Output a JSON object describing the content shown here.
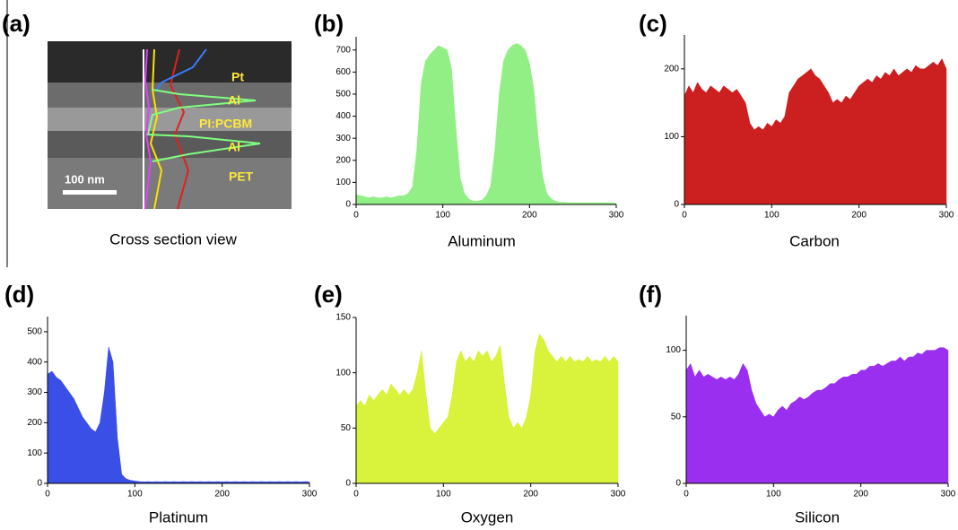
{
  "image_panel": {
    "label": "(a)",
    "caption": "Cross section view",
    "scale_bar": "100 nm",
    "layers": [
      "Pt",
      "Al",
      "PI:PCBM",
      "Al",
      "PET"
    ]
  },
  "chart_data": [
    {
      "type": "area",
      "panel": "(b)",
      "xlabel": "Aluminum",
      "color": "#92ef85",
      "x": [
        0,
        5,
        10,
        15,
        20,
        25,
        30,
        35,
        40,
        45,
        50,
        55,
        60,
        65,
        70,
        75,
        80,
        85,
        90,
        95,
        100,
        105,
        110,
        115,
        120,
        125,
        130,
        135,
        140,
        145,
        150,
        155,
        160,
        165,
        170,
        175,
        180,
        185,
        190,
        195,
        200,
        205,
        210,
        215,
        220,
        225,
        230,
        235,
        240,
        245,
        250,
        255,
        260,
        265,
        270,
        275,
        280,
        285,
        290,
        295,
        300
      ],
      "values": [
        45,
        40,
        35,
        30,
        35,
        30,
        30,
        35,
        30,
        35,
        40,
        40,
        50,
        80,
        250,
        550,
        650,
        680,
        700,
        720,
        710,
        700,
        620,
        350,
        120,
        50,
        25,
        15,
        15,
        20,
        40,
        80,
        250,
        500,
        650,
        700,
        720,
        730,
        720,
        700,
        640,
        520,
        300,
        130,
        50,
        25,
        15,
        10,
        10,
        8,
        8,
        8,
        8,
        8,
        8,
        8,
        8,
        8,
        8,
        8,
        5
      ],
      "xlim": [
        0,
        300
      ],
      "xticks": [
        0,
        100,
        200,
        300
      ],
      "ylim": [
        0,
        760
      ],
      "yticks": [
        0,
        100,
        200,
        300,
        400,
        500,
        600,
        700
      ]
    },
    {
      "type": "area",
      "panel": "(c)",
      "xlabel": "Carbon",
      "color": "#cc1f1f",
      "x": [
        0,
        5,
        10,
        15,
        20,
        25,
        30,
        35,
        40,
        45,
        50,
        55,
        60,
        65,
        70,
        75,
        80,
        85,
        90,
        95,
        100,
        105,
        110,
        115,
        120,
        125,
        130,
        135,
        140,
        145,
        150,
        155,
        160,
        165,
        170,
        175,
        180,
        185,
        190,
        195,
        200,
        205,
        210,
        215,
        220,
        225,
        230,
        235,
        240,
        245,
        250,
        255,
        260,
        265,
        270,
        275,
        280,
        285,
        290,
        295,
        300
      ],
      "values": [
        160,
        175,
        165,
        180,
        170,
        165,
        175,
        170,
        165,
        175,
        170,
        165,
        170,
        160,
        150,
        120,
        110,
        115,
        110,
        120,
        115,
        125,
        120,
        130,
        165,
        175,
        185,
        190,
        195,
        200,
        190,
        185,
        175,
        165,
        150,
        155,
        150,
        160,
        155,
        165,
        175,
        180,
        185,
        180,
        190,
        185,
        195,
        190,
        200,
        190,
        195,
        200,
        195,
        205,
        200,
        200,
        205,
        210,
        205,
        215,
        200
      ],
      "xlim": [
        0,
        300
      ],
      "xticks": [
        0,
        100,
        200,
        300
      ],
      "ylim": [
        0,
        250
      ],
      "yticks": [
        0,
        100,
        200
      ]
    },
    {
      "type": "area",
      "panel": "(d)",
      "xlabel": "Platinum",
      "color": "#3a4fe6",
      "x": [
        0,
        5,
        10,
        15,
        20,
        25,
        30,
        35,
        40,
        45,
        50,
        55,
        60,
        65,
        70,
        75,
        80,
        85,
        90,
        95,
        100,
        105,
        110,
        115,
        120,
        125,
        130,
        135,
        140,
        145,
        150,
        155,
        160,
        165,
        170,
        175,
        180,
        185,
        190,
        195,
        200,
        205,
        210,
        215,
        220,
        225,
        230,
        235,
        240,
        245,
        250,
        255,
        260,
        265,
        270,
        275,
        280,
        285,
        290,
        295,
        300
      ],
      "values": [
        360,
        370,
        350,
        340,
        320,
        300,
        280,
        250,
        220,
        200,
        180,
        170,
        200,
        300,
        450,
        400,
        150,
        30,
        15,
        10,
        8,
        6,
        5,
        6,
        5,
        6,
        5,
        6,
        5,
        6,
        5,
        6,
        5,
        6,
        5,
        6,
        5,
        6,
        5,
        6,
        5,
        6,
        5,
        6,
        5,
        6,
        5,
        6,
        5,
        6,
        5,
        6,
        5,
        6,
        5,
        6,
        5,
        6,
        5,
        6,
        5
      ],
      "xlim": [
        0,
        300
      ],
      "xticks": [
        0,
        100,
        200,
        300
      ],
      "ylim": [
        0,
        550
      ],
      "yticks": [
        0,
        100,
        200,
        300,
        400,
        500
      ]
    },
    {
      "type": "area",
      "panel": "(e)",
      "xlabel": "Oxygen",
      "color": "#d9f23c",
      "x": [
        0,
        5,
        10,
        15,
        20,
        25,
        30,
        35,
        40,
        45,
        50,
        55,
        60,
        65,
        70,
        75,
        80,
        85,
        90,
        95,
        100,
        105,
        110,
        115,
        120,
        125,
        130,
        135,
        140,
        145,
        150,
        155,
        160,
        165,
        170,
        175,
        180,
        185,
        190,
        195,
        200,
        205,
        210,
        215,
        220,
        225,
        230,
        235,
        240,
        245,
        250,
        255,
        260,
        265,
        270,
        275,
        280,
        285,
        290,
        295,
        300
      ],
      "values": [
        70,
        75,
        70,
        80,
        75,
        80,
        85,
        80,
        90,
        85,
        80,
        85,
        80,
        85,
        100,
        120,
        80,
        50,
        45,
        50,
        55,
        60,
        80,
        110,
        120,
        110,
        115,
        110,
        120,
        115,
        120,
        110,
        115,
        125,
        90,
        60,
        50,
        55,
        50,
        60,
        80,
        120,
        135,
        130,
        120,
        115,
        110,
        115,
        110,
        115,
        110,
        112,
        110,
        115,
        110,
        112,
        110,
        115,
        110,
        115,
        110
      ],
      "xlim": [
        0,
        300
      ],
      "xticks": [
        0,
        100,
        200,
        300
      ],
      "ylim": [
        0,
        150
      ],
      "yticks": [
        0,
        50,
        100,
        150
      ]
    },
    {
      "type": "area",
      "panel": "(f)",
      "xlabel": "Silicon",
      "color": "#9b2ff0",
      "x": [
        0,
        5,
        10,
        15,
        20,
        25,
        30,
        35,
        40,
        45,
        50,
        55,
        60,
        65,
        70,
        75,
        80,
        85,
        90,
        95,
        100,
        105,
        110,
        115,
        120,
        125,
        130,
        135,
        140,
        145,
        150,
        155,
        160,
        165,
        170,
        175,
        180,
        185,
        190,
        195,
        200,
        205,
        210,
        215,
        220,
        225,
        230,
        235,
        240,
        245,
        250,
        255,
        260,
        265,
        270,
        275,
        280,
        285,
        290,
        295,
        300
      ],
      "values": [
        85,
        90,
        80,
        85,
        80,
        82,
        80,
        78,
        80,
        78,
        80,
        78,
        82,
        90,
        85,
        70,
        60,
        55,
        50,
        52,
        50,
        55,
        58,
        55,
        60,
        62,
        65,
        63,
        65,
        68,
        70,
        70,
        72,
        75,
        75,
        78,
        80,
        80,
        82,
        82,
        85,
        85,
        88,
        88,
        90,
        88,
        90,
        92,
        92,
        95,
        92,
        95,
        95,
        98,
        97,
        100,
        100,
        100,
        102,
        102,
        100
      ],
      "xlim": [
        0,
        300
      ],
      "xticks": [
        0,
        100,
        200,
        300
      ],
      "ylim": [
        0,
        126
      ],
      "yticks": [
        0,
        50,
        100
      ]
    }
  ]
}
